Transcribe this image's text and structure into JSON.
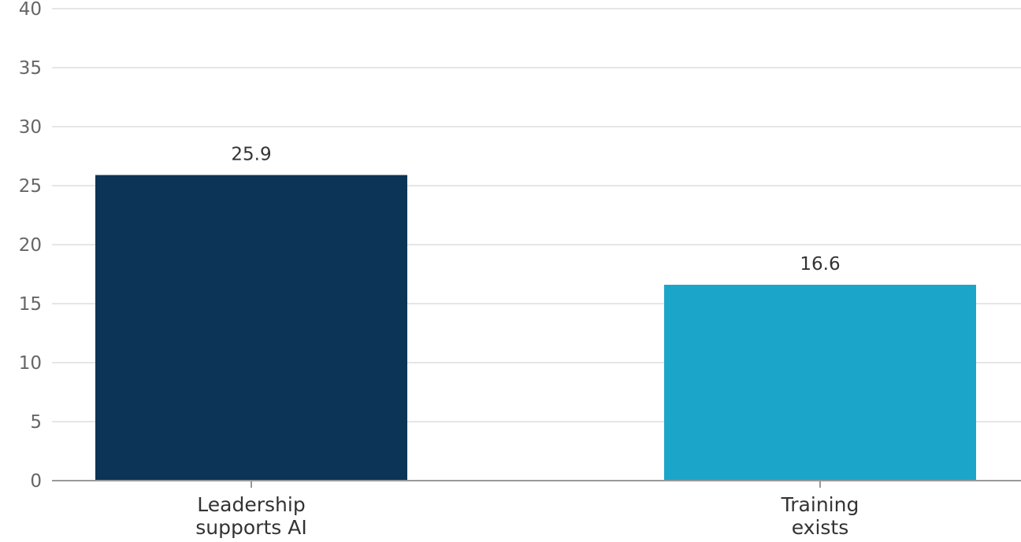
{
  "chart_data": {
    "type": "bar",
    "categories": [
      [
        "Leadership",
        "supports AI"
      ],
      [
        "Training",
        "exists"
      ]
    ],
    "values": [
      25.9,
      16.6
    ],
    "value_labels": [
      "25.9",
      "16.6"
    ],
    "bar_colors": [
      "#0b3456",
      "#1ba6c9"
    ],
    "ylim": [
      0,
      40
    ],
    "yticks": [
      0,
      5,
      10,
      15,
      20,
      25,
      30,
      35,
      40
    ],
    "grid": true,
    "title": "",
    "xlabel": "",
    "ylabel": ""
  }
}
